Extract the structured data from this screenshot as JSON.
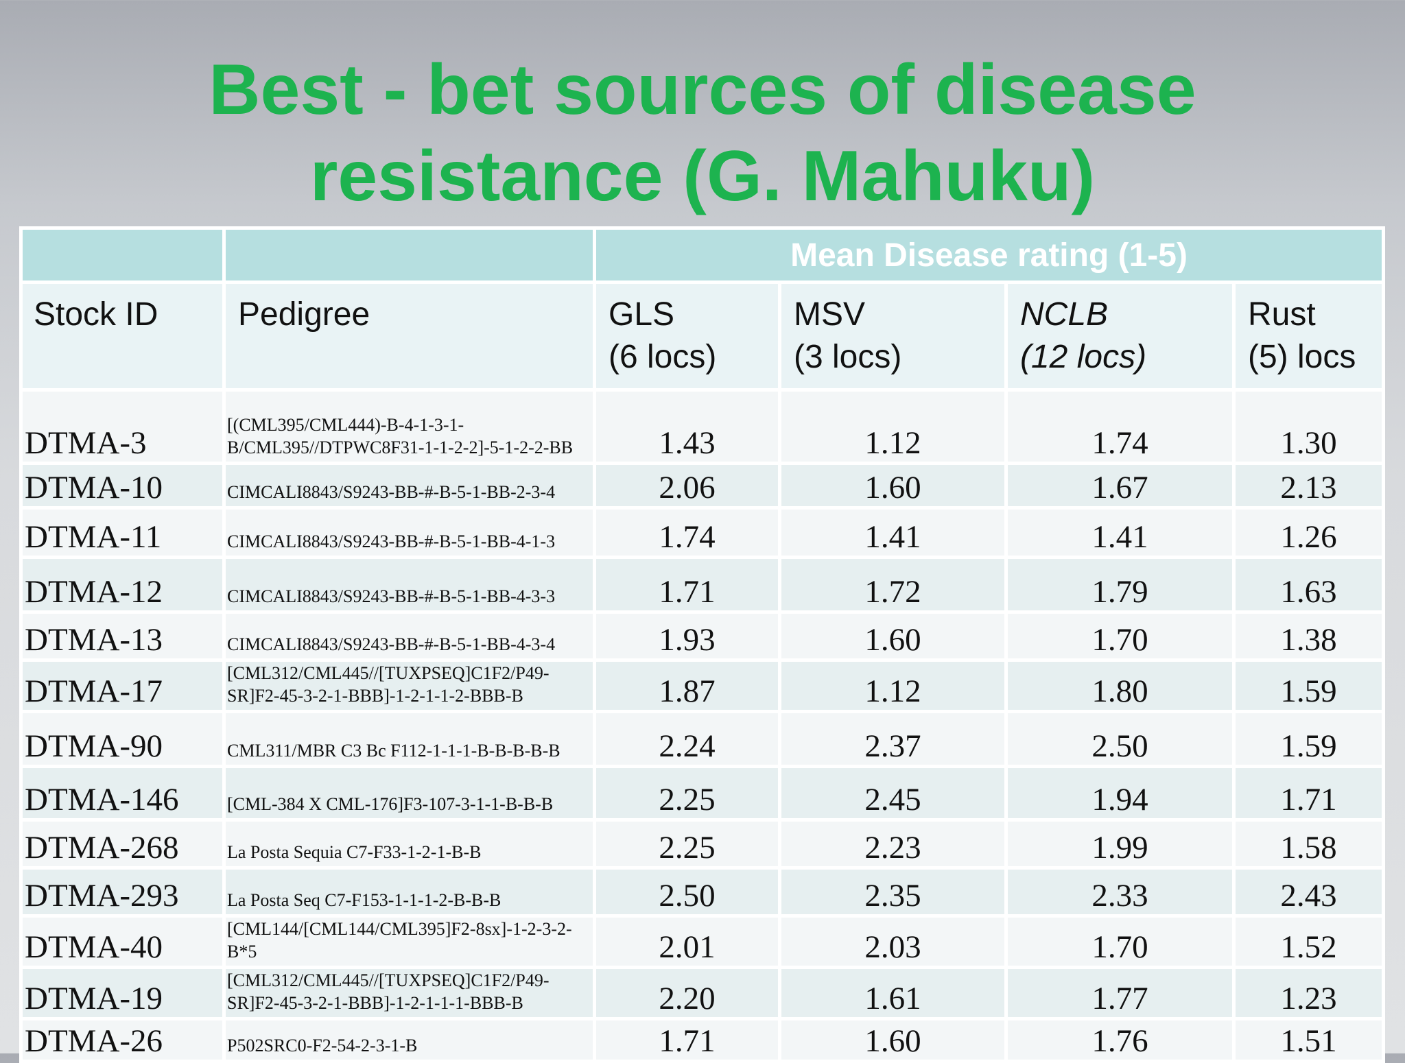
{
  "title": {
    "line1": "Best - bet sources of disease",
    "line2": "resistance (G. Mahuku)"
  },
  "table": {
    "group_header": "Mean Disease rating (1-5)",
    "columns": {
      "stock_id": "Stock ID",
      "pedigree": "Pedigree",
      "gls_1": "GLS",
      "gls_2": "(6 locs)",
      "msv_1": "MSV",
      "msv_2": "(3 locs)",
      "nclb_1": "NCLB",
      "nclb_2": "(12 locs)",
      "rust_1": "Rust",
      "rust_2": "(5) locs"
    },
    "rows": [
      {
        "id": "DTMA-3",
        "pedigree": "[(CML395/CML444)-B-4-1-3-1-B/CML395//DTPWC8F31-1-1-2-2]-5-1-2-2-BB",
        "gls": "1.43",
        "msv": "1.12",
        "nclb": "1.74",
        "rust": "1.30"
      },
      {
        "id": "DTMA-10",
        "pedigree": "CIMCALI8843/S9243-BB-#-B-5-1-BB-2-3-4",
        "gls": "2.06",
        "msv": "1.60",
        "nclb": "1.67",
        "rust": "2.13"
      },
      {
        "id": "DTMA-11",
        "pedigree": "CIMCALI8843/S9243-BB-#-B-5-1-BB-4-1-3",
        "gls": "1.74",
        "msv": "1.41",
        "nclb": "1.41",
        "rust": "1.26"
      },
      {
        "id": "DTMA-12",
        "pedigree": "CIMCALI8843/S9243-BB-#-B-5-1-BB-4-3-3",
        "gls": "1.71",
        "msv": "1.72",
        "nclb": "1.79",
        "rust": "1.63"
      },
      {
        "id": "DTMA-13",
        "pedigree": "CIMCALI8843/S9243-BB-#-B-5-1-BB-4-3-4",
        "gls": "1.93",
        "msv": "1.60",
        "nclb": "1.70",
        "rust": "1.38"
      },
      {
        "id": "DTMA-17",
        "pedigree": "[CML312/CML445//[TUXPSEQ]C1F2/P49-SR]F2-45-3-2-1-BBB]-1-2-1-1-2-BBB-B",
        "gls": "1.87",
        "msv": "1.12",
        "nclb": "1.80",
        "rust": "1.59"
      },
      {
        "id": "DTMA-90",
        "pedigree": "CML311/MBR C3 Bc F112-1-1-1-B-B-B-B-B",
        "gls": "2.24",
        "msv": "2.37",
        "nclb": "2.50",
        "rust": "1.59"
      },
      {
        "id": "DTMA-146",
        "pedigree": "[CML-384 X CML-176]F3-107-3-1-1-B-B-B",
        "gls": "2.25",
        "msv": "2.45",
        "nclb": "1.94",
        "rust": "1.71"
      },
      {
        "id": "DTMA-268",
        "pedigree": "La Posta Sequia C7-F33-1-2-1-B-B",
        "gls": "2.25",
        "msv": "2.23",
        "nclb": "1.99",
        "rust": "1.58"
      },
      {
        "id": "DTMA-293",
        "pedigree": "La Posta Seq C7-F153-1-1-1-2-B-B-B",
        "gls": "2.50",
        "msv": "2.35",
        "nclb": "2.33",
        "rust": "2.43"
      },
      {
        "id": "DTMA-40",
        "pedigree": "[CML144/[CML144/CML395]F2-8sx]-1-2-3-2-B*5",
        "gls": "2.01",
        "msv": "2.03",
        "nclb": "1.70",
        "rust": "1.52"
      },
      {
        "id": "DTMA-19",
        "pedigree": "[CML312/CML445//[TUXPSEQ]C1F2/P49-SR]F2-45-3-2-1-BBB]-1-2-1-1-1-BBB-B",
        "gls": "2.20",
        "msv": "1.61",
        "nclb": "1.77",
        "rust": "1.23"
      },
      {
        "id": "DTMA-26",
        "pedigree": "P502SRC0-F2-54-2-3-1-B",
        "gls": "1.71",
        "msv": "1.60",
        "nclb": "1.76",
        "rust": "1.51"
      }
    ]
  }
}
